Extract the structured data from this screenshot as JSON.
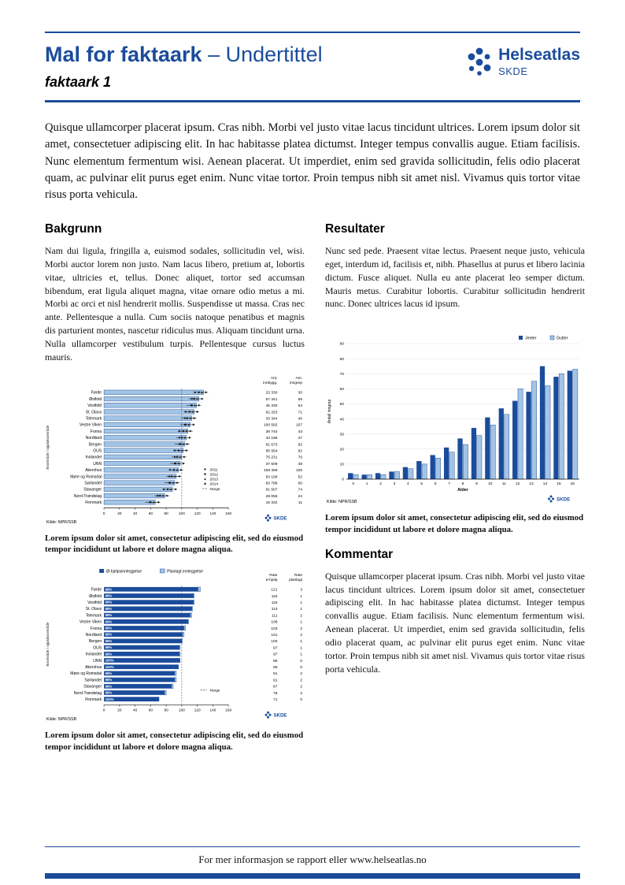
{
  "page": {
    "title": "Mal for faktaark",
    "subtitle": "– Undertittel",
    "doc_label": "faktaark 1",
    "footer": "For mer informasjon se rapport eller www.helseatlas.no"
  },
  "logo": {
    "name": "Helseatlas",
    "org": "SKDE"
  },
  "colors": {
    "brand": "#1b4c9b",
    "light_bar": "#a3c4e4",
    "grid": "#e0e0e0"
  },
  "intro": "Quisque ullamcorper placerat ipsum. Cras nibh. Morbi vel justo vitae lacus tincidunt ultrices. Lorem ipsum dolor sit amet, consectetuer adipiscing elit. In hac habitasse platea dictumst. Integer tempus convallis augue. Etiam facilisis. Nunc elementum fermentum wisi. Aenean placerat. Ut imperdiet, enim sed gravida sollicitudin, felis odio placerat quam, ac pulvinar elit purus eget enim. Nunc vitae tortor. Proin tempus nibh sit amet nisl. Vivamus quis tortor vitae risus porta vehicula.",
  "sections": {
    "bakgrunn": {
      "heading": "Bakgrunn",
      "body": "Nam dui ligula, fringilla a, euismod sodales, sollicitudin vel, wisi. Morbi auctor lorem non justo. Nam lacus libero, pretium at, lobortis vitae, ultricies et, tellus. Donec aliquet, tortor sed accumsan bibendum, erat ligula aliquet magna, vitae ornare odio metus a mi. Morbi ac orci et nisl hendrerit mollis. Suspendisse ut massa. Cras nec ante. Pellentesque a nulla. Cum sociis natoque penatibus et magnis dis parturient montes, nascetur ridiculus mus. Aliquam tincidunt urna. Nulla ullamcorper vestibulum turpis. Pellentesque cursus luctus mauris."
    },
    "resultater": {
      "heading": "Resultater",
      "body": "Nunc sed pede. Praesent vitae lectus. Praesent neque justo, vehicula eget, interdum id, facilisis et, nibh. Phasellus at purus et libero lacinia dictum. Fusce aliquet. Nulla eu ante placerat leo semper dictum. Mauris metus. Curabitur lobortis. Curabitur sollicitudin hendrerit nunc. Donec ultrices lacus id ipsum."
    },
    "kommentar": {
      "heading": "Kommentar",
      "body": "Quisque ullamcorper placerat ipsum. Cras nibh. Morbi vel justo vitae lacus tincidunt ultrices. Lorem ipsum dolor sit amet, consectetuer adipiscing elit. In hac habitasse platea dictumst. Integer tempus convallis augue. Etiam facilisis. Nunc elementum fermentum wisi. Aenean placerat. Ut imperdiet, enim sed gravida sollicitudin, felis odio placerat quam, ac pulvinar elit purus eget enim. Nunc vitae tortor. Proin tempus nibh sit amet nisl. Vivamus quis tortor vitae risus porta vehicula."
    }
  },
  "captions": {
    "chart1": "Lorem ipsum dolor sit amet, consectetur adipiscing elit, sed do eiusmod tempor incididunt ut labore et dolore magna aliqua.",
    "chart2": "Lorem ipsum dolor sit amet, consectetur adipiscing elit, sed do eiusmod tempor incididunt ut labore et dolore magna aliqua.",
    "chart3": "Lorem ipsum dolor sit amet, consectetur adipiscing elit, sed do eiusmod tempor incididunt ut labore et dolore magna aliqua."
  },
  "chart_data": [
    {
      "type": "bar",
      "orientation": "horizontal",
      "axis_label": "Boområde / opptaksområde",
      "categories": [
        "Førde",
        "Østfold",
        "Vestfold",
        "St. Olavs",
        "Telemark",
        "Vestre Viken",
        "Fonna",
        "Nordland",
        "Bergen",
        "OUS",
        "Innlandet",
        "UNN",
        "Akershus",
        "Møre og Romsdal",
        "Sørlandet",
        "Stavanger",
        "Nord-Trøndelag",
        "Finnmark"
      ],
      "values": [
        128,
        122,
        119,
        116,
        113,
        111,
        108,
        106,
        104,
        102,
        100,
        98,
        96,
        93,
        91,
        88,
        78,
        66
      ],
      "col_headers": [
        [
          "Ant.",
          "innbygg."
        ],
        [
          "Ant.",
          "inngrep"
        ]
      ],
      "innbygg": [
        "23 330",
        "57 341",
        "45 330",
        "62 253",
        "33 344",
        "100 582",
        "39 744",
        "43 186",
        "91 673",
        "95 564",
        "75 231",
        "37 609",
        "108 469",
        "54 199",
        "83 788",
        "81 507",
        "29 056",
        "15 332"
      ],
      "inngrep": [
        30,
        89,
        54,
        71,
        40,
        107,
        43,
        47,
        92,
        82,
        76,
        38,
        105,
        52,
        60,
        74,
        24,
        11
      ],
      "markers_legend": [
        "2011",
        "2012",
        "2013",
        "2014"
      ],
      "ref_label": "Norge",
      "ref_line": 100,
      "xlim": [
        0,
        160
      ],
      "xticks": [
        0,
        20,
        40,
        60,
        80,
        100,
        120,
        140,
        160
      ],
      "source": "Kilde: NPR/SSB",
      "logo": "SKDE"
    },
    {
      "type": "bar",
      "orientation": "horizontal",
      "stacked": true,
      "axis_label": "Boområde / opptaksområde",
      "categories": [
        "Førde",
        "Østfold",
        "Vestfold",
        "St. Olavs",
        "Telemark",
        "Vestre Viken",
        "Fonna",
        "Nordland",
        "Bergen",
        "OUS",
        "Innlandet",
        "UNN",
        "Akershus",
        "Møre og Romsdal",
        "Sørlandet",
        "Stavanger",
        "Nord-Trøndelag",
        "Finnmark"
      ],
      "series": [
        {
          "name": "Ø-hjelpsinnleggelse",
          "values": [
            121,
            115,
            115,
            113,
            111,
            108,
            103,
            101,
            100,
            97,
            97,
            98,
            96,
            91,
            91,
            87,
            78,
            71
          ]
        },
        {
          "name": "Planlagt innleggelse",
          "values": [
            3,
            1,
            1,
            1,
            2,
            1,
            2,
            2,
            1,
            1,
            1,
            0,
            0,
            2,
            2,
            2,
            2,
            0
          ]
        }
      ],
      "share_labels": [
        "98%",
        "99%",
        "99%",
        "99%",
        "98%",
        "99%",
        "98%",
        "98%",
        "99%",
        "99%",
        "99%",
        "100%",
        "100%",
        "98%",
        "98%",
        "98%",
        "98%",
        "100%"
      ],
      "col_headers": [
        [
          "Rate",
          "ø-hjelp"
        ],
        [
          "Rate",
          "planlagt"
        ]
      ],
      "ref_label": "Norge",
      "ref_line": 100,
      "xlim": [
        0,
        160
      ],
      "xticks": [
        0,
        20,
        40,
        60,
        80,
        100,
        120,
        140,
        160
      ],
      "source": "Kilde: NPR/SSB",
      "logo": "SKDE"
    },
    {
      "type": "bar",
      "orientation": "vertical",
      "categories": [
        "0",
        "1",
        "2",
        "3",
        "4",
        "5",
        "6",
        "7",
        "8",
        "9",
        "10",
        "11",
        "12",
        "13",
        "14",
        "15",
        "16"
      ],
      "series": [
        {
          "name": "Jenter",
          "values": [
            4,
            3,
            4,
            5,
            8,
            12,
            16,
            21,
            27,
            34,
            41,
            47,
            52,
            58,
            75,
            68,
            72
          ]
        },
        {
          "name": "Gutter",
          "values": [
            3,
            3,
            3,
            5,
            7,
            10,
            14,
            18,
            23,
            29,
            36,
            43,
            60,
            65,
            62,
            70,
            73
          ]
        }
      ],
      "xlabel": "Alder",
      "ylabel": "Antall inngrep",
      "ylim": [
        0,
        90
      ],
      "yticks": [
        0,
        10,
        20,
        30,
        40,
        50,
        60,
        70,
        80,
        90
      ],
      "legend_position": "top-right",
      "source": "Kilde: NPR/SSB",
      "logo": "SKDE"
    }
  ]
}
